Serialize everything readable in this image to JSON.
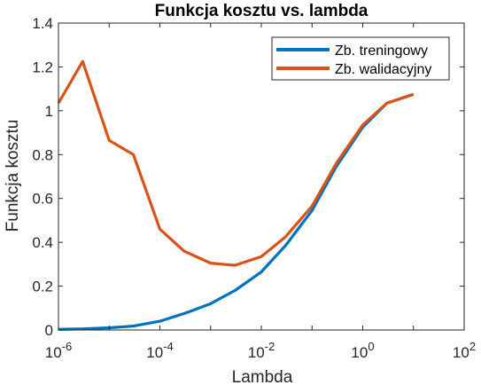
{
  "chart_data": {
    "type": "line",
    "title": "Funkcja kosztu vs. lambda",
    "xlabel": "Lambda",
    "ylabel": "Funkcja kosztu",
    "xscale": "log",
    "xlim": [
      1e-06,
      100
    ],
    "ylim": [
      0,
      1.4
    ],
    "grid": false,
    "legend_position": "top-right",
    "x_ticks": [
      {
        "value": 1e-06,
        "base": "10",
        "exp": "-6"
      },
      {
        "value": 0.0001,
        "base": "10",
        "exp": "-4"
      },
      {
        "value": 0.01,
        "base": "10",
        "exp": "-2"
      },
      {
        "value": 1,
        "base": "10",
        "exp": "0"
      },
      {
        "value": 100,
        "base": "10",
        "exp": "2"
      }
    ],
    "y_ticks": [
      {
        "value": 0,
        "label": "0"
      },
      {
        "value": 0.2,
        "label": "0.2"
      },
      {
        "value": 0.4,
        "label": "0.4"
      },
      {
        "value": 0.6,
        "label": "0.6"
      },
      {
        "value": 0.8,
        "label": "0.8"
      },
      {
        "value": 1.0,
        "label": "1"
      },
      {
        "value": 1.2,
        "label": "1.2"
      },
      {
        "value": 1.4,
        "label": "1.4"
      }
    ],
    "x": [
      1e-06,
      3e-06,
      1e-05,
      3e-05,
      0.0001,
      0.0003,
      0.001,
      0.003,
      0.01,
      0.03,
      0.1,
      0.3,
      1,
      3,
      10
    ],
    "series": [
      {
        "name": "Zb. treningowy",
        "color": "#0072BD",
        "values": [
          0.003,
          0.005,
          0.01,
          0.018,
          0.04,
          0.075,
          0.12,
          0.18,
          0.265,
          0.385,
          0.545,
          0.745,
          0.925,
          1.035,
          1.075
        ]
      },
      {
        "name": "Zb. walidacyjny",
        "color": "#D95319",
        "values": [
          1.035,
          1.225,
          0.865,
          0.8,
          0.46,
          0.36,
          0.305,
          0.295,
          0.335,
          0.425,
          0.565,
          0.76,
          0.935,
          1.035,
          1.075
        ]
      }
    ]
  }
}
